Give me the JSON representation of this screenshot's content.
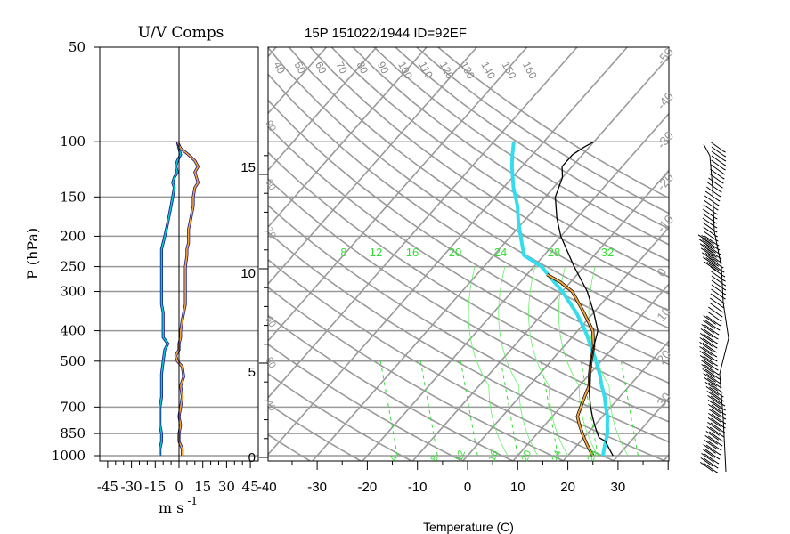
{
  "chart_data": [
    {
      "type": "line",
      "name_printed": "U/V Comps",
      "title": "U/V Comps",
      "ylabel": "P (hPa)",
      "xlabel_main": "m s",
      "xlabel_sup": "-1",
      "xlim": [
        -50,
        50
      ],
      "pressure_ticks": [
        "50",
        "100",
        "150",
        "200",
        "250",
        "300",
        "400",
        "500",
        "700",
        "850",
        "1000"
      ],
      "x_ticks": [
        "-45",
        "-30",
        "-15",
        "0",
        "15",
        "30",
        "45"
      ],
      "series": [
        {
          "color": "#00c8d8",
          "points": [
            [
              100,
              -1
            ],
            [
              105,
              0
            ],
            [
              110,
              1
            ],
            [
              115,
              -1
            ],
            [
              120,
              -2
            ],
            [
              125,
              -1
            ],
            [
              130,
              -3
            ],
            [
              135,
              -4
            ],
            [
              140,
              -3
            ],
            [
              150,
              -4
            ],
            [
              160,
              -5
            ],
            [
              170,
              -6
            ],
            [
              180,
              -7
            ],
            [
              190,
              -8
            ],
            [
              200,
              -9
            ],
            [
              210,
              -10
            ],
            [
              220,
              -11
            ],
            [
              230,
              -11
            ],
            [
              250,
              -11
            ],
            [
              270,
              -11
            ],
            [
              300,
              -11
            ],
            [
              330,
              -11
            ],
            [
              350,
              -10
            ],
            [
              370,
              -10
            ],
            [
              400,
              -10
            ],
            [
              420,
              -10
            ],
            [
              440,
              -7
            ],
            [
              460,
              -9
            ],
            [
              500,
              -10
            ],
            [
              550,
              -11
            ],
            [
              600,
              -11
            ],
            [
              650,
              -11
            ],
            [
              700,
              -12
            ],
            [
              750,
              -12
            ],
            [
              800,
              -12
            ],
            [
              850,
              -11
            ],
            [
              900,
              -11
            ],
            [
              950,
              -12
            ],
            [
              1000,
              -12
            ]
          ]
        },
        {
          "color": "#f2a33c",
          "points": [
            [
              100,
              -1
            ],
            [
              105,
              1
            ],
            [
              110,
              6
            ],
            [
              115,
              10
            ],
            [
              120,
              12
            ],
            [
              125,
              10
            ],
            [
              130,
              11
            ],
            [
              135,
              12
            ],
            [
              140,
              10
            ],
            [
              150,
              9
            ],
            [
              160,
              9
            ],
            [
              170,
              8
            ],
            [
              180,
              7
            ],
            [
              190,
              6
            ],
            [
              200,
              6
            ],
            [
              210,
              6
            ],
            [
              220,
              5
            ],
            [
              230,
              5
            ],
            [
              250,
              4
            ],
            [
              270,
              4
            ],
            [
              300,
              4
            ],
            [
              330,
              4
            ],
            [
              350,
              3
            ],
            [
              370,
              2
            ],
            [
              400,
              1
            ],
            [
              420,
              1
            ],
            [
              440,
              0
            ],
            [
              460,
              0
            ],
            [
              480,
              -2
            ],
            [
              500,
              -1
            ],
            [
              520,
              2
            ],
            [
              560,
              3
            ],
            [
              600,
              1
            ],
            [
              650,
              2
            ],
            [
              700,
              1
            ],
            [
              750,
              0
            ],
            [
              800,
              1
            ],
            [
              850,
              0
            ],
            [
              900,
              0
            ],
            [
              950,
              2
            ],
            [
              1000,
              2
            ]
          ]
        }
      ]
    },
    {
      "type": "line",
      "title": "15P 151022/1944 ID=92EF",
      "xlabel": "Temperature (C)",
      "x_ticks": [
        "-40",
        "-30",
        "-20",
        "-10",
        "0",
        "10",
        "20",
        "30"
      ],
      "xlim": [
        -43,
        40
      ],
      "height_ticks_km": [
        "0",
        "5",
        "10",
        "15"
      ],
      "isotherm_labels": [
        "40",
        "50",
        "60",
        "70",
        "80",
        "90",
        "100",
        "110",
        "120",
        "130",
        "140",
        "150",
        "160"
      ],
      "mixing_ratio_labels": [
        "8",
        "12",
        "16",
        "20",
        "24",
        "28",
        "32"
      ],
      "bottom_labels": [
        "4",
        "8",
        "12",
        "16",
        "20",
        "24",
        "28"
      ],
      "right_labels": [
        "-50",
        "-40",
        "-30",
        "-20",
        "-10",
        "0",
        "10",
        "20",
        "30"
      ],
      "left_labels": [
        "90",
        "80",
        "70",
        "60",
        "50",
        "40",
        "30"
      ],
      "series": [
        {
          "role": "temperature",
          "color": "#000000",
          "points": [
            [
              1000,
              29
            ],
            [
              975,
              28
            ],
            [
              950,
              27
            ],
            [
              925,
              26
            ],
            [
              900,
              25
            ],
            [
              875,
              23
            ],
            [
              850,
              22
            ],
            [
              800,
              20
            ],
            [
              750,
              18
            ],
            [
              700,
              16
            ],
            [
              650,
              14
            ],
            [
              600,
              12
            ],
            [
              550,
              10
            ],
            [
              500,
              8
            ],
            [
              450,
              6
            ],
            [
              400,
              4
            ],
            [
              350,
              0
            ],
            [
              300,
              -5
            ],
            [
              250,
              -12
            ],
            [
              200,
              -20
            ],
            [
              175,
              -24
            ],
            [
              150,
              -28
            ],
            [
              130,
              -30
            ],
            [
              120,
              -32
            ],
            [
              110,
              -32
            ],
            [
              104,
              -31
            ],
            [
              100,
              -30
            ]
          ]
        },
        {
          "role": "dewpoint",
          "color": "#f2a33c",
          "points": [
            [
              1000,
              25
            ],
            [
              975,
              24
            ],
            [
              950,
              23
            ],
            [
              925,
              22
            ],
            [
              900,
              21
            ],
            [
              875,
              20
            ],
            [
              850,
              19
            ],
            [
              800,
              17
            ],
            [
              750,
              15
            ],
            [
              700,
              14
            ],
            [
              650,
              13
            ],
            [
              600,
              12
            ],
            [
              550,
              10
            ],
            [
              500,
              8
            ],
            [
              450,
              6
            ],
            [
              400,
              3
            ],
            [
              350,
              -2
            ],
            [
              300,
              -8
            ],
            [
              280,
              -12
            ],
            [
              265,
              -16
            ]
          ]
        },
        {
          "role": "parcel",
          "color": "#33ddee",
          "points": [
            [
              1000,
              27
            ],
            [
              950,
              26
            ],
            [
              900,
              25
            ],
            [
              850,
              24
            ],
            [
              800,
              22.5
            ],
            [
              750,
              21
            ],
            [
              700,
              19
            ],
            [
              650,
              17
            ],
            [
              600,
              14.5
            ],
            [
              550,
              12
            ],
            [
              500,
              9
            ],
            [
              450,
              5.5
            ],
            [
              400,
              1.5
            ],
            [
              350,
              -3.5
            ],
            [
              300,
              -10
            ],
            [
              250,
              -18.5
            ],
            [
              230,
              -24
            ],
            [
              200,
              -28
            ],
            [
              180,
              -31
            ],
            [
              160,
              -34
            ],
            [
              140,
              -38
            ],
            [
              120,
              -42
            ],
            [
              110,
              -44
            ],
            [
              100,
              -46
            ]
          ]
        }
      ]
    }
  ]
}
